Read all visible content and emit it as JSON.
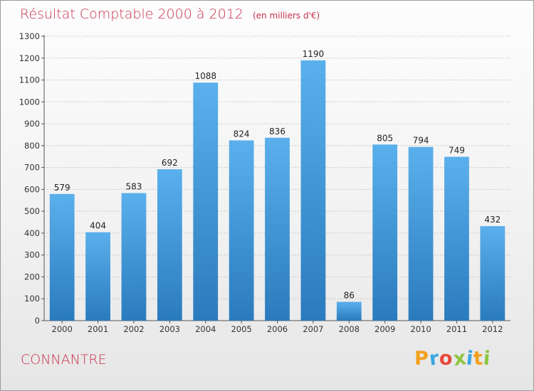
{
  "header": {
    "title": "Résultat Comptable 2000 à 2012",
    "subtitle": "(en milliers d'€)"
  },
  "footer": {
    "commune": "CONNANTRE",
    "brand_letters": [
      "P",
      "r",
      "o",
      "x",
      "i",
      "t",
      "i"
    ]
  },
  "colors": {
    "title": "#c8324f",
    "bar_top": "#5ab0ec",
    "bar_bottom": "#2a7bbd",
    "axis": "#555555",
    "grid": "#c8c8c8",
    "brand_letter_colors": [
      "#f2a01e",
      "#3aa6df",
      "#e8493b",
      "#8dc63f",
      "#3aa6df",
      "#f2a01e",
      "#8dc63f"
    ]
  },
  "chart_data": {
    "type": "bar",
    "title": "Résultat Comptable 2000 à 2012",
    "subtitle": "(en milliers d'€)",
    "xlabel": "",
    "ylabel": "",
    "categories": [
      "2000",
      "2001",
      "2002",
      "2003",
      "2004",
      "2005",
      "2006",
      "2007",
      "2008",
      "2009",
      "2010",
      "2011",
      "2012"
    ],
    "values": [
      579,
      404,
      583,
      692,
      1088,
      824,
      836,
      1190,
      86,
      805,
      794,
      749,
      432
    ],
    "ylim": [
      0,
      1300
    ],
    "yticks": [
      0,
      100,
      200,
      300,
      400,
      500,
      600,
      700,
      800,
      900,
      1000,
      1100,
      1200,
      1300
    ],
    "grid": true
  }
}
